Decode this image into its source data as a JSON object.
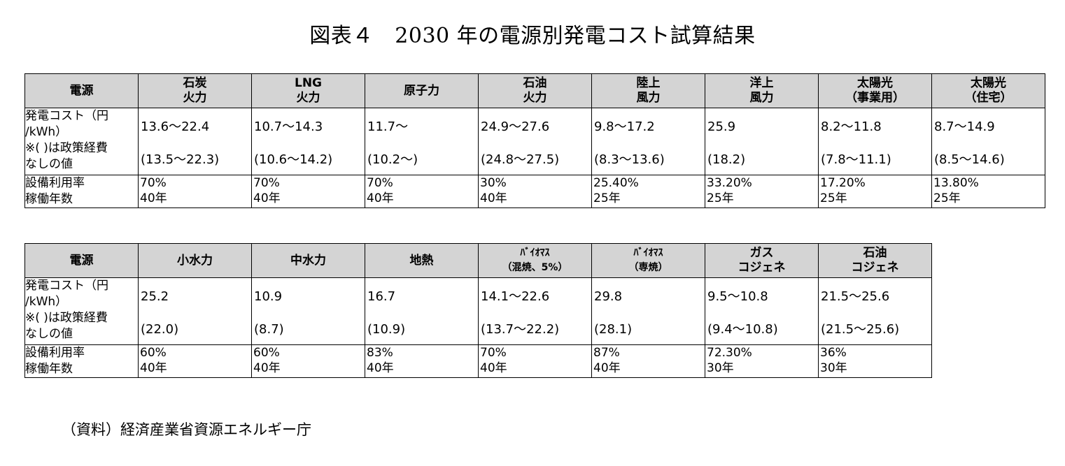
{
  "title": "図表４　2030 年の電源別発電コスト試算結果",
  "row_labels": {
    "source": "電源",
    "cost": "発電コスト（円\n/kWh）\n※( )は政策経費\nなしの値",
    "util": "設備利用率\n稼働年数"
  },
  "table1": {
    "columns": [
      {
        "header": "石炭\n火力",
        "cost": "13.6～22.4",
        "cost_no_policy": "(13.5～22.3)",
        "utilization": "70%",
        "years": "40年"
      },
      {
        "header": "LNG\n火力",
        "cost": "10.7～14.3",
        "cost_no_policy": "(10.6～14.2)",
        "utilization": "70%",
        "years": "40年"
      },
      {
        "header": "原子力",
        "cost": "11.7～",
        "cost_no_policy": "(10.2～)",
        "utilization": "70%",
        "years": "40年"
      },
      {
        "header": "石油\n火力",
        "cost": "24.9～27.6",
        "cost_no_policy": "(24.8～27.5)",
        "utilization": "30%",
        "years": "40年"
      },
      {
        "header": "陸上\n風力",
        "cost": "9.8～17.2",
        "cost_no_policy": "(8.3～13.6)",
        "utilization": "25.40%",
        "years": "25年"
      },
      {
        "header": "洋上\n風力",
        "cost": "25.9",
        "cost_no_policy": "(18.2)",
        "utilization": "33.20%",
        "years": "25年"
      },
      {
        "header": "太陽光\n（事業用）",
        "cost": "8.2～11.8",
        "cost_no_policy": "(7.8～11.1)",
        "utilization": "17.20%",
        "years": "25年"
      },
      {
        "header": "太陽光\n（住宅）",
        "cost": "8.7～14.9",
        "cost_no_policy": "(8.5～14.6)",
        "utilization": "13.80%",
        "years": "25年"
      }
    ]
  },
  "table2": {
    "columns": [
      {
        "header": "小水力",
        "cost": "25.2",
        "cost_no_policy": "(22.0)",
        "utilization": "60%",
        "years": "40年"
      },
      {
        "header": "中水力",
        "cost": "10.9",
        "cost_no_policy": "(8.7)",
        "utilization": "60%",
        "years": "40年"
      },
      {
        "header": "地熱",
        "cost": "16.7",
        "cost_no_policy": "(10.9)",
        "utilization": "83%",
        "years": "40年"
      },
      {
        "header": "ﾊﾞｲｵﾏｽ\n（混焼、5%）",
        "cost": "14.1～22.6",
        "cost_no_policy": "(13.7～22.2)",
        "utilization": "70%",
        "years": "40年"
      },
      {
        "header": "ﾊﾞｲｵﾏｽ\n（専焼）",
        "cost": "29.8",
        "cost_no_policy": "(28.1)",
        "utilization": "87%",
        "years": "40年"
      },
      {
        "header": "ガス\nコジェネ",
        "cost": "9.5～10.8",
        "cost_no_policy": "(9.4～10.8)",
        "utilization": "72.30%",
        "years": "30年"
      },
      {
        "header": "石油\nコジェネ",
        "cost": "21.5～25.6",
        "cost_no_policy": "(21.5～25.6)",
        "utilization": "36%",
        "years": "30年"
      }
    ]
  },
  "source_note": "（資料）経済産業省資源エネルギー庁"
}
